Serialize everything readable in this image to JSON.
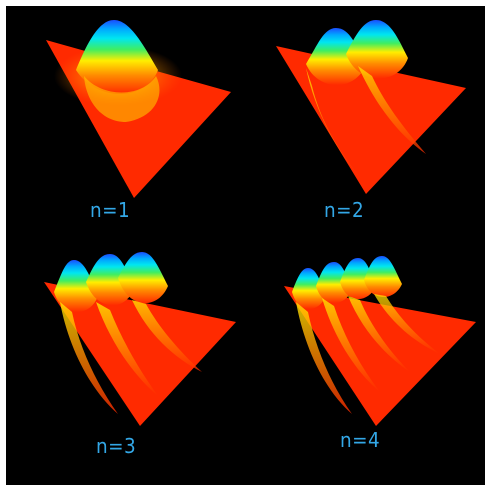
{
  "panels": [
    {
      "label": "n=1",
      "peaks": 1
    },
    {
      "label": "n=2",
      "peaks": 2
    },
    {
      "label": "n=3",
      "peaks": 3
    },
    {
      "label": "n=4",
      "peaks": 4
    }
  ],
  "colors": {
    "background": "#000000",
    "label": "#33a7e6",
    "base": "#ff2a00",
    "orange": "#ff7a00",
    "yellow": "#ffee00",
    "green": "#33e666",
    "cyan": "#00e0ff",
    "blue": "#1a4dff"
  }
}
